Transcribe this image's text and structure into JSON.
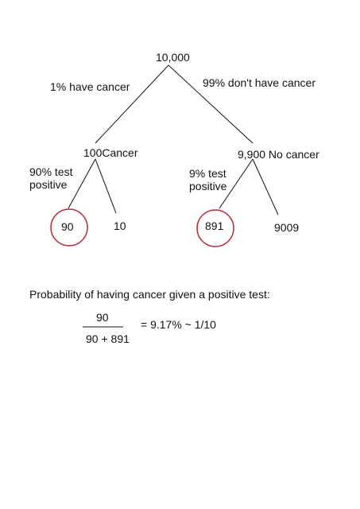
{
  "tree": {
    "root": "10,000",
    "left_edge": "1% have cancer",
    "right_edge": "99% don't have cancer",
    "left_node": "100Cancer",
    "right_node": "9,900 No cancer",
    "left_test_line1": "90% test",
    "left_test_line2": "positive",
    "right_test_line1": "9% test",
    "right_test_line2": "positive",
    "leaf_1": "90",
    "leaf_2": "10",
    "leaf_3": "891",
    "leaf_4": "9009"
  },
  "formula": {
    "caption": "Probability of having cancer given a positive test:",
    "numerator": "90",
    "denominator": "90 + 891",
    "result": "=  9.17% ~  1/10"
  },
  "colors": {
    "line": "#111111",
    "highlight_circle": "#b5303f"
  }
}
